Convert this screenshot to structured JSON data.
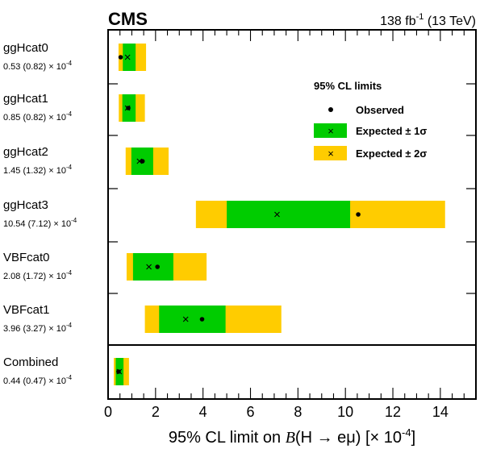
{
  "chart_data": {
    "type": "limit_bars",
    "experiment": "CMS",
    "lumi": "138 fb",
    "lumi_exp": "-1",
    "energy": " (13 TeV)",
    "xlabel_prefix": "95% CL limit on ",
    "xlabel_B": "B",
    "xlabel_process": "(H → eμ)  [× 10",
    "xlabel_exp": "-4",
    "xlabel_close": "]",
    "xlim": [
      0,
      15.5
    ],
    "xticks": [
      0,
      2,
      4,
      6,
      8,
      10,
      12,
      14
    ],
    "colors": {
      "band1": "#00cc00",
      "band2": "#ffcc00"
    },
    "legend": {
      "title": "95% CL limits",
      "observed": "Observed",
      "expected1": "Expected ± 1σ",
      "expected2": "Expected ± 2σ",
      "placement": "top-right"
    },
    "categories": [
      {
        "name": "ggHcat0",
        "label": "0.53 (0.82)",
        "unit": "× 10",
        "exp": "-4",
        "observed": 0.53,
        "expected": 0.82,
        "m1": 0.62,
        "p1": 1.16,
        "m2": 0.44,
        "p2": 1.6
      },
      {
        "name": "ggHcat1",
        "label": "0.85 (0.82)",
        "unit": "× 10",
        "exp": "-4",
        "observed": 0.85,
        "expected": 0.82,
        "m1": 0.6,
        "p1": 1.16,
        "m2": 0.45,
        "p2": 1.55
      },
      {
        "name": "ggHcat2",
        "label": "1.45 (1.32)",
        "unit": "× 10",
        "exp": "-4",
        "observed": 1.45,
        "expected": 1.32,
        "m1": 0.98,
        "p1": 1.9,
        "m2": 0.74,
        "p2": 2.55
      },
      {
        "name": "ggHcat3",
        "label": "10.54 (7.12)",
        "unit": "× 10",
        "exp": "-4",
        "observed": 10.54,
        "expected": 7.12,
        "m1": 5.0,
        "p1": 10.2,
        "m2": 3.7,
        "p2": 14.2
      },
      {
        "name": "VBFcat0",
        "label": "2.08 (1.72)",
        "unit": "× 10",
        "exp": "-4",
        "observed": 2.08,
        "expected": 1.72,
        "m1": 1.05,
        "p1": 2.75,
        "m2": 0.78,
        "p2": 4.15
      },
      {
        "name": "VBFcat1",
        "label": "3.96 (3.27)",
        "unit": "× 10",
        "exp": "-4",
        "observed": 3.96,
        "expected": 3.27,
        "m1": 2.15,
        "p1": 4.95,
        "m2": 1.55,
        "p2": 7.3
      },
      {
        "name": "Combined",
        "label": "0.44 (0.47)",
        "unit": "× 10",
        "exp": "-4",
        "observed": 0.44,
        "expected": 0.47,
        "m1": 0.32,
        "p1": 0.65,
        "m2": 0.24,
        "p2": 0.88
      }
    ]
  }
}
